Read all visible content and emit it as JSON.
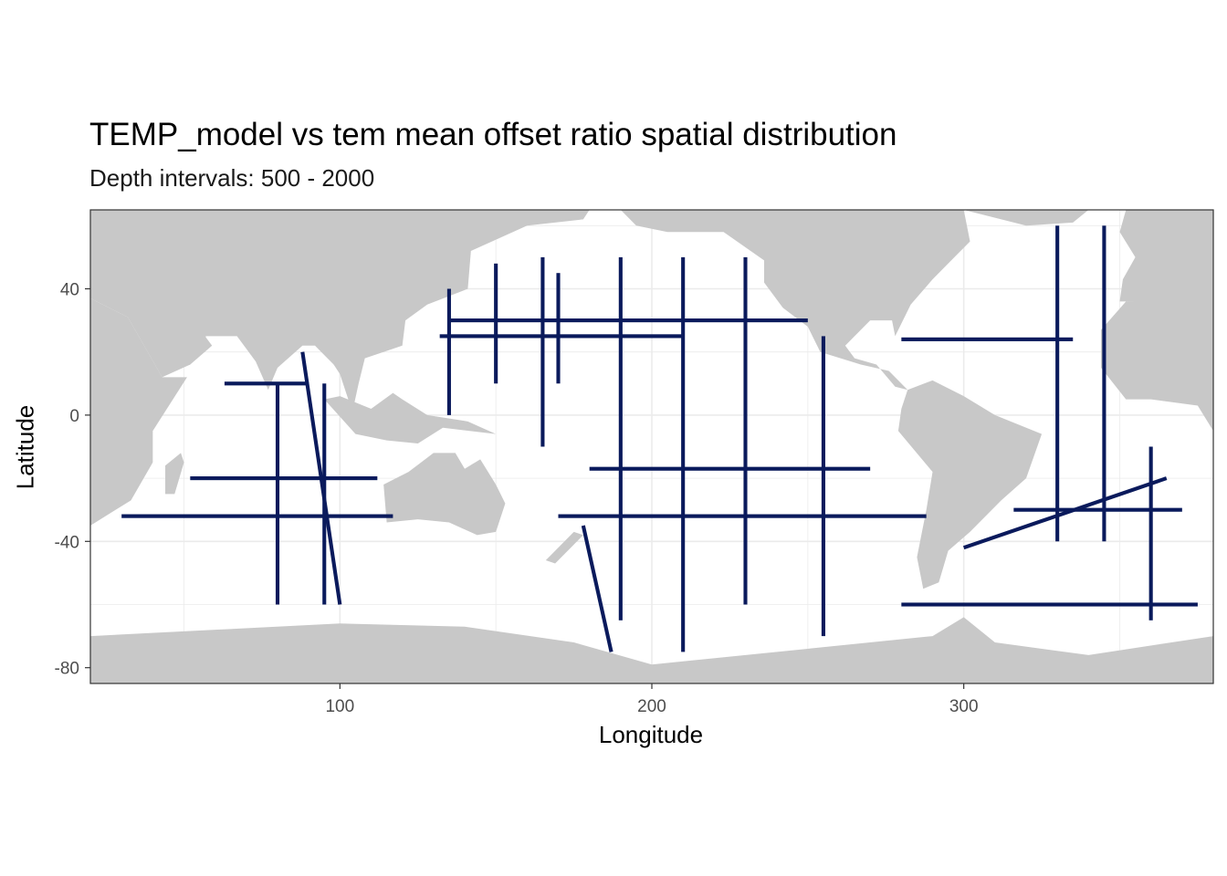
{
  "chart_data": {
    "type": "map",
    "title": "TEMP_model vs tem mean offset ratio spatial distribution",
    "subtitle": "Depth intervals: 500 - 2000",
    "xlabel": "Longitude",
    "ylabel": "Latitude",
    "xlim": [
      20,
      380
    ],
    "ylim": [
      -85,
      65
    ],
    "x_ticks": [
      100,
      200,
      300
    ],
    "y_ticks": [
      40,
      0,
      -40,
      -80
    ],
    "grid": true,
    "colors": {
      "land": "#c8c8c8",
      "ocean": "#ffffff",
      "observations": "#0a1a5c",
      "sparse": "#7f7f7f",
      "grid": "#ebebeb",
      "frame": "#333333"
    },
    "transects": {
      "zonal": [
        {
          "lat": 25,
          "lon": [
            132,
            210
          ]
        },
        {
          "lat": 30,
          "lon": [
            135,
            250
          ]
        },
        {
          "lat": 24,
          "lon": [
            280,
            335
          ]
        },
        {
          "lat": 10,
          "lon": [
            63,
            90
          ]
        },
        {
          "lat": -20,
          "lon": [
            52,
            112
          ]
        },
        {
          "lat": -32,
          "lon": [
            30,
            117
          ]
        },
        {
          "lat": -32,
          "lon": [
            170,
            288
          ]
        },
        {
          "lat": -17,
          "lon": [
            180,
            270
          ]
        },
        {
          "lat": -30,
          "lon": [
            316,
            370
          ]
        },
        {
          "lat": -60,
          "lon": [
            280,
            375
          ]
        }
      ],
      "meridional": [
        {
          "lon": 135,
          "lat": [
            0,
            40
          ]
        },
        {
          "lon": 150,
          "lat": [
            10,
            48
          ]
        },
        {
          "lon": 165,
          "lat": [
            -10,
            50
          ]
        },
        {
          "lon": 170,
          "lat": [
            10,
            45
          ]
        },
        {
          "lon": 190,
          "lat": [
            -65,
            50
          ]
        },
        {
          "lon": 210,
          "lat": [
            -75,
            50
          ]
        },
        {
          "lon": 230,
          "lat": [
            -60,
            50
          ]
        },
        {
          "lon": 255,
          "lat": [
            -70,
            25
          ]
        },
        {
          "lon": 95,
          "lat": [
            -60,
            10
          ]
        },
        {
          "lon": 80,
          "lat": [
            -60,
            10
          ]
        },
        {
          "lon": 330,
          "lat": [
            -40,
            60
          ]
        },
        {
          "lon": 345,
          "lat": [
            -40,
            60
          ]
        },
        {
          "lon": 360,
          "lat": [
            -65,
            -10
          ]
        }
      ],
      "diagonal": [
        {
          "from": [
            88,
            20
          ],
          "to": [
            100,
            -60
          ]
        },
        {
          "from": [
            178,
            -35
          ],
          "to": [
            187,
            -75
          ]
        },
        {
          "from": [
            300,
            -42
          ],
          "to": [
            365,
            -20
          ]
        }
      ]
    }
  }
}
